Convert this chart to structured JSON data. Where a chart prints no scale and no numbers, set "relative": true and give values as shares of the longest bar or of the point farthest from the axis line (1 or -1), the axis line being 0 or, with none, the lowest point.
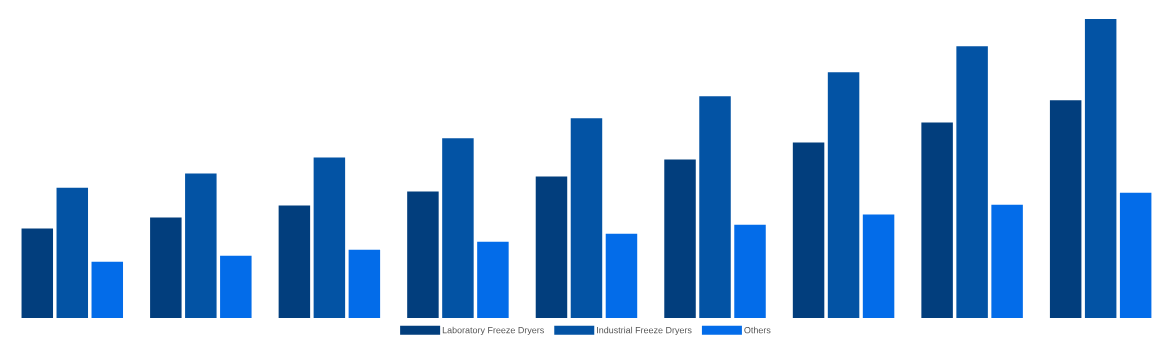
{
  "chart_data": {
    "type": "bar",
    "relative": true,
    "legend": "bottom",
    "categories": [
      null,
      null,
      null,
      null,
      null,
      null,
      null,
      null,
      null
    ],
    "series": [
      {
        "name": "Laboratory Freeze Dryers",
        "color": "#023e7d",
        "values": [
          0.299,
          0.336,
          0.376,
          0.423,
          0.473,
          0.53,
          0.587,
          0.654,
          0.728
        ]
      },
      {
        "name": "Industrial Freeze Dryers",
        "color": "#0353a4",
        "values": [
          0.436,
          0.483,
          0.537,
          0.601,
          0.668,
          0.742,
          0.822,
          0.909,
          1
        ]
      },
      {
        "name": "Others",
        "color": "#036ce9",
        "values": [
          0.188,
          0.208,
          0.228,
          0.255,
          0.282,
          0.312,
          0.346,
          0.379,
          0.419
        ]
      }
    ]
  }
}
